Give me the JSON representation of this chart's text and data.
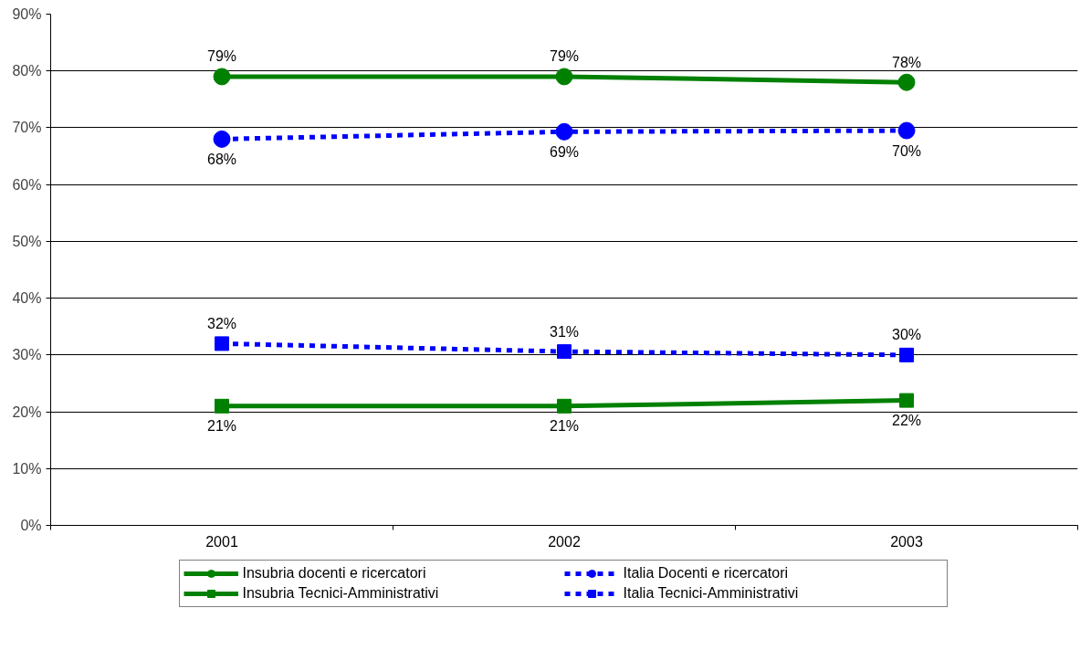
{
  "chart_data": {
    "type": "line",
    "categories": [
      "2001",
      "2002",
      "2003"
    ],
    "series": [
      {
        "name": "Insubria docenti e ricercatori",
        "color": "#008000",
        "values": [
          79,
          79,
          78
        ],
        "marker": "circle",
        "line_style": "solid",
        "value_labels": [
          "79%",
          "79%",
          "78%"
        ]
      },
      {
        "name": "Italia Docenti e ricercatori",
        "color": "#0000ff",
        "values": [
          68,
          69.3,
          69.5
        ],
        "marker": "circle",
        "line_style": "dashed",
        "value_labels": [
          "68%",
          "69%",
          "70%"
        ]
      },
      {
        "name": "Insubria Tecnici-Amministrativi",
        "color": "#008000",
        "values": [
          21,
          21,
          22
        ],
        "marker": "square",
        "line_style": "solid",
        "value_labels": [
          "21%",
          "21%",
          "22%"
        ]
      },
      {
        "name": "Italia Tecnici-Amministrativi",
        "color": "#0000ff",
        "values": [
          32,
          30.6,
          30
        ],
        "marker": "square",
        "line_style": "dashed",
        "value_labels": [
          "32%",
          "31%",
          "30%"
        ]
      }
    ],
    "ylim": [
      0,
      90
    ],
    "yticks": [
      {
        "value": 0,
        "label": "0%"
      },
      {
        "value": 10,
        "label": "10%"
      },
      {
        "value": 20,
        "label": "20%"
      },
      {
        "value": 30,
        "label": "30%"
      },
      {
        "value": 40,
        "label": "40%"
      },
      {
        "value": 50,
        "label": "50%"
      },
      {
        "value": 60,
        "label": "60%"
      },
      {
        "value": 70,
        "label": "70%"
      },
      {
        "value": 80,
        "label": "80%"
      },
      {
        "value": 90,
        "label": "90%"
      }
    ],
    "grid": "y",
    "legend": "bottom"
  }
}
